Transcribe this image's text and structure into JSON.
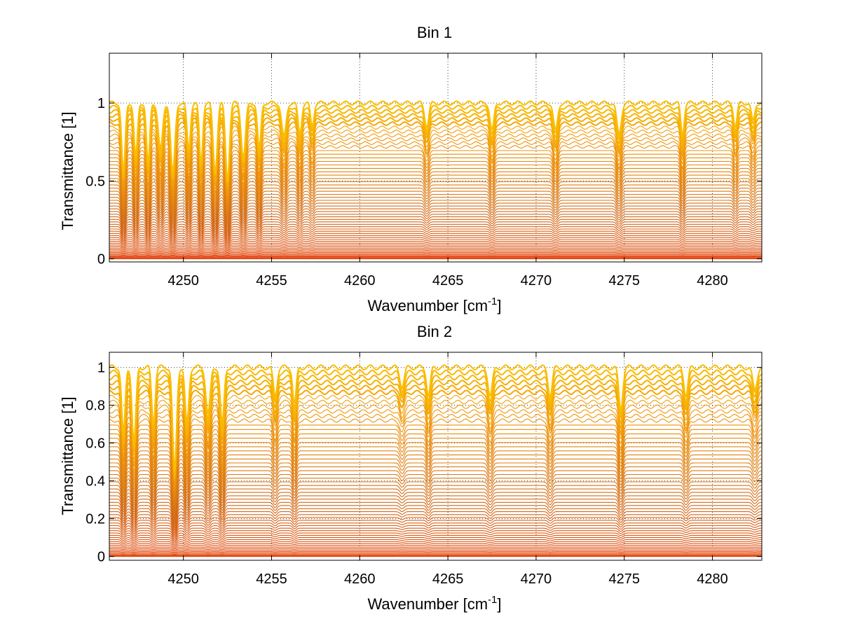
{
  "chart_data": [
    {
      "type": "line",
      "title": "Bin 1",
      "xlabel_main": "Wavenumber [cm",
      "xlabel_sup": "-1",
      "xlabel_end": "]",
      "ylabel": "Transmittance [1]",
      "xlim": [
        4245.8,
        4282.8
      ],
      "ylim": [
        -0.02,
        1.32
      ],
      "xticks": [
        4250,
        4255,
        4260,
        4265,
        4270,
        4275,
        4280
      ],
      "yticks": [
        0,
        0.5,
        1
      ],
      "ytick_labels": [
        "0",
        "0.5",
        "1"
      ],
      "grid": "dotted",
      "series_count": 60,
      "level_min": 0.0,
      "level_max": 1.0,
      "absorption_lines": [
        {
          "x": 4246.6,
          "depth": 0.45
        },
        {
          "x": 4247.3,
          "depth": 0.35
        },
        {
          "x": 4248.0,
          "depth": 0.4
        },
        {
          "x": 4248.7,
          "depth": 0.3
        },
        {
          "x": 4249.4,
          "depth": 0.45
        },
        {
          "x": 4250.3,
          "depth": 0.3
        },
        {
          "x": 4251.0,
          "depth": 0.4
        },
        {
          "x": 4251.8,
          "depth": 0.45
        },
        {
          "x": 4252.5,
          "depth": 0.5
        },
        {
          "x": 4253.4,
          "depth": 0.35
        },
        {
          "x": 4254.3,
          "depth": 0.3
        },
        {
          "x": 4255.7,
          "depth": 0.22
        },
        {
          "x": 4256.6,
          "depth": 0.2
        },
        {
          "x": 4257.3,
          "depth": 0.15
        },
        {
          "x": 4263.8,
          "depth": 0.15
        },
        {
          "x": 4267.5,
          "depth": 0.18
        },
        {
          "x": 4271.1,
          "depth": 0.18
        },
        {
          "x": 4274.7,
          "depth": 0.2
        },
        {
          "x": 4278.3,
          "depth": 0.2
        },
        {
          "x": 4281.3,
          "depth": 0.15
        },
        {
          "x": 4282.3,
          "depth": 0.12
        }
      ]
    },
    {
      "type": "line",
      "title": "Bin 2",
      "xlabel_main": "Wavenumber [cm",
      "xlabel_sup": "-1",
      "xlabel_end": "]",
      "ylabel": "Transmittance [1]",
      "xlim": [
        4245.8,
        4282.8
      ],
      "ylim": [
        -0.02,
        1.08
      ],
      "xticks": [
        4250,
        4255,
        4260,
        4265,
        4270,
        4275,
        4280
      ],
      "yticks": [
        0,
        0.2,
        0.4,
        0.6,
        0.8,
        1
      ],
      "ytick_labels": [
        "0",
        "0.2",
        "0.4",
        "0.6",
        "0.8",
        "1"
      ],
      "grid": "dotted",
      "series_count": 60,
      "level_min": 0.0,
      "level_max": 1.0,
      "absorption_lines": [
        {
          "x": 4246.6,
          "depth": 0.35
        },
        {
          "x": 4247.2,
          "depth": 0.4
        },
        {
          "x": 4248.3,
          "depth": 0.3
        },
        {
          "x": 4249.5,
          "depth": 0.55
        },
        {
          "x": 4250.2,
          "depth": 0.3
        },
        {
          "x": 4251.4,
          "depth": 0.25
        },
        {
          "x": 4252.2,
          "depth": 0.3
        },
        {
          "x": 4255.2,
          "depth": 0.15
        },
        {
          "x": 4256.3,
          "depth": 0.2
        },
        {
          "x": 4262.4,
          "depth": 0.1
        },
        {
          "x": 4263.9,
          "depth": 0.15
        },
        {
          "x": 4267.4,
          "depth": 0.15
        },
        {
          "x": 4270.8,
          "depth": 0.15
        },
        {
          "x": 4274.8,
          "depth": 0.22
        },
        {
          "x": 4278.5,
          "depth": 0.15
        },
        {
          "x": 4282.4,
          "depth": 0.12
        }
      ]
    }
  ]
}
